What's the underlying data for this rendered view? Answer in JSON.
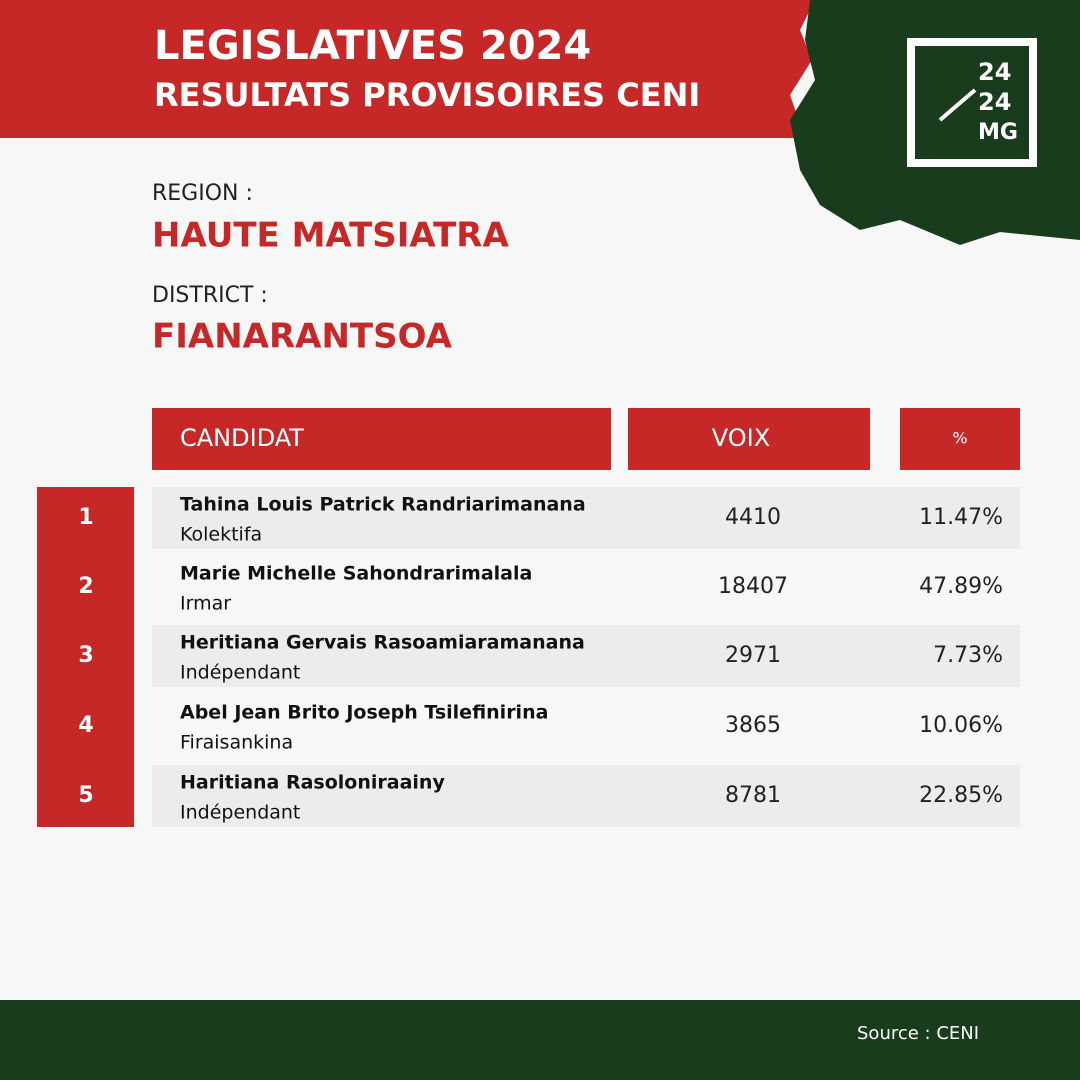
{
  "header": {
    "title": "LEGISLATIVES 2024",
    "subtitle": "RESULTATS PROVISOIRES CENI"
  },
  "logo": {
    "lines": [
      "24",
      "24",
      "MG"
    ]
  },
  "region": {
    "label": "REGION :",
    "value": "HAUTE MATSIATRA"
  },
  "district": {
    "label": "DISTRICT :",
    "value": "FIANARANTSOA"
  },
  "table": {
    "columns": [
      "CANDIDAT",
      "VOIX",
      "%"
    ],
    "rows": [
      {
        "rank": 1,
        "name": "Tahina Louis Patrick Randriarimanana",
        "party": "Kolektifa",
        "votes": 4410,
        "percent": "11.47%"
      },
      {
        "rank": 2,
        "name": "Marie Michelle Sahondrarimalala",
        "party": "Irmar",
        "votes": 18407,
        "percent": "47.89%"
      },
      {
        "rank": 3,
        "name": "Heritiana Gervais Rasoamiaramanana",
        "party": "Indépendant",
        "votes": 2971,
        "percent": "7.73%"
      },
      {
        "rank": 4,
        "name": "Abel Jean Brito Joseph Tsilefinirina",
        "party": "Firaisankina",
        "votes": 3865,
        "percent": "10.06%"
      },
      {
        "rank": 5,
        "name": "Haritiana Rasoloniraainy",
        "party": "Indépendant",
        "votes": 8781,
        "percent": "22.85%"
      }
    ]
  },
  "footer": {
    "source": "Source : CENI"
  }
}
